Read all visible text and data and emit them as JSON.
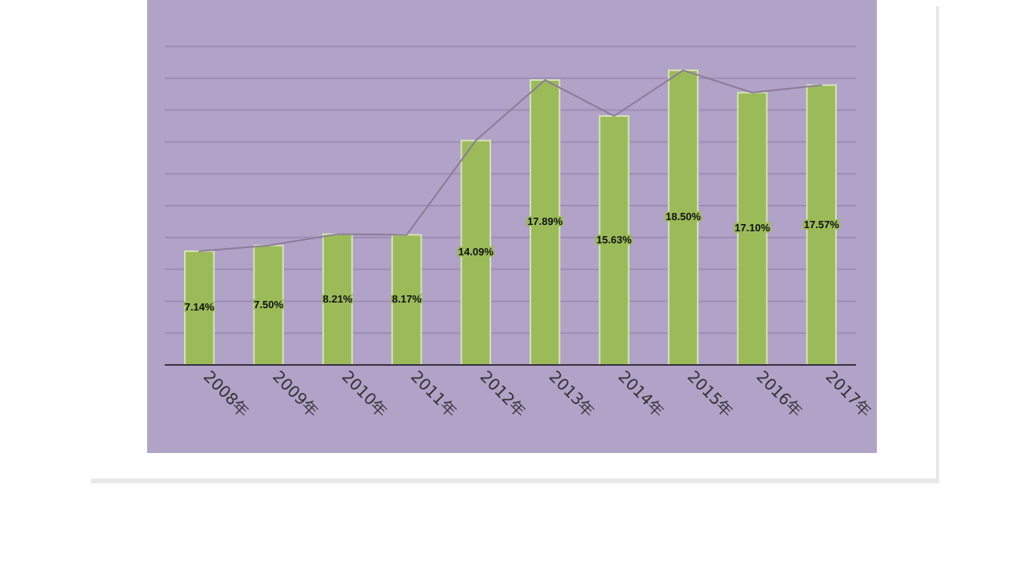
{
  "chart_data": {
    "type": "bar",
    "categories": [
      "2008年",
      "2009年",
      "2010年",
      "2011年",
      "2012年",
      "2013年",
      "2014年",
      "2015年",
      "2016年",
      "2017年"
    ],
    "series": [
      {
        "color": "#9bbb59",
        "values": [
          7.14,
          7.5,
          8.21,
          8.17,
          14.09,
          17.89,
          15.63,
          18.5,
          17.1,
          17.57
        ],
        "value_labels": [
          "7.14%",
          "7.50%",
          "8.21%",
          "8.17%",
          "14.09%",
          "17.89%",
          "15.63%",
          "18.50%",
          "17.10%",
          "17.57%"
        ]
      },
      {
        "type": "line",
        "color": "#8c7c98",
        "values": [
          7.14,
          7.5,
          8.21,
          8.17,
          14.09,
          17.89,
          15.63,
          18.5,
          17.1,
          17.57
        ]
      }
    ],
    "ylim": [
      0,
      20
    ],
    "yticks": [
      {
        "value": 0,
        "label": null
      },
      {
        "value": 2,
        "label": null
      },
      {
        "value": 4,
        "label": null
      },
      {
        "value": 6,
        "label": null
      },
      {
        "value": 8,
        "label": null
      },
      {
        "value": 10,
        "label": null
      },
      {
        "value": 12,
        "label": null
      },
      {
        "value": 14,
        "label": null
      },
      {
        "value": 16,
        "label": null
      },
      {
        "value": 18,
        "label": null
      },
      {
        "value": 20,
        "label": null
      }
    ],
    "tick_labels": "x",
    "grid": "y"
  }
}
